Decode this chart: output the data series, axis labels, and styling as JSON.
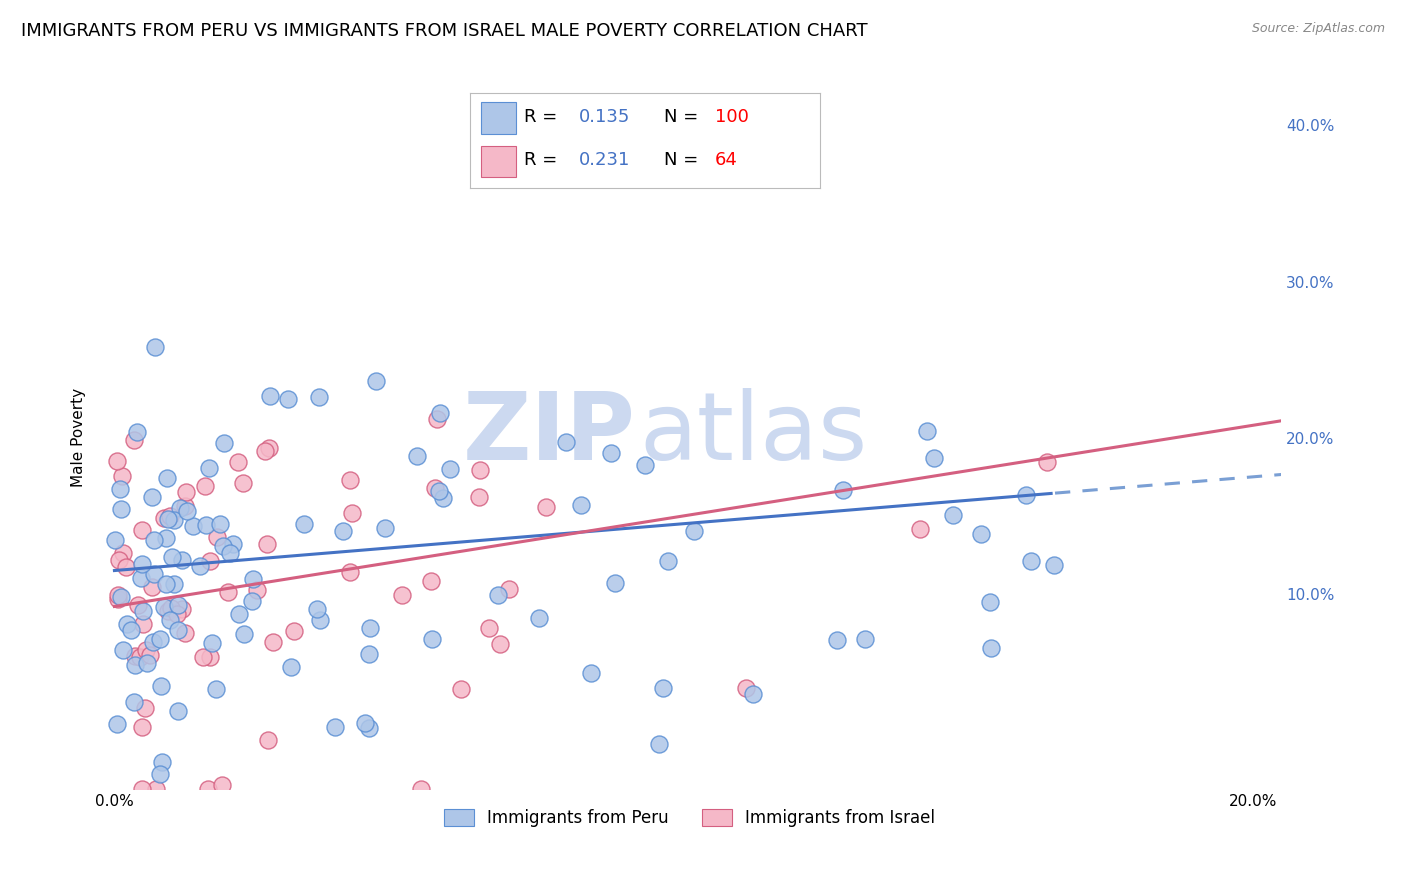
{
  "title": "IMMIGRANTS FROM PERU VS IMMIGRANTS FROM ISRAEL MALE POVERTY CORRELATION CHART",
  "source": "Source: ZipAtlas.com",
  "ylabel": "Male Poverty",
  "xlim": [
    -0.003,
    0.205
  ],
  "ylim": [
    -0.025,
    0.425
  ],
  "blue_color": "#aec6e8",
  "blue_edge_color": "#5b8fd4",
  "pink_color": "#f5b8c8",
  "pink_edge_color": "#d45f80",
  "blue_line_color": "#4472c4",
  "pink_line_color": "#d45f80",
  "blue_dash_color": "#7a9fd4",
  "R_blue": 0.135,
  "N_blue": 100,
  "R_pink": 0.231,
  "N_pink": 64,
  "watermark_zip": "ZIP",
  "watermark_atlas": "atlas",
  "watermark_color": "#ccd9f0",
  "legend_label_blue": "Immigrants from Peru",
  "legend_label_pink": "Immigrants from Israel",
  "background_color": "#ffffff",
  "grid_color": "#cccccc",
  "title_fontsize": 13,
  "axis_label_fontsize": 11,
  "tick_fontsize": 11,
  "legend_r_n_color": "#4472c4",
  "legend_n_value_color": "#ff0000"
}
